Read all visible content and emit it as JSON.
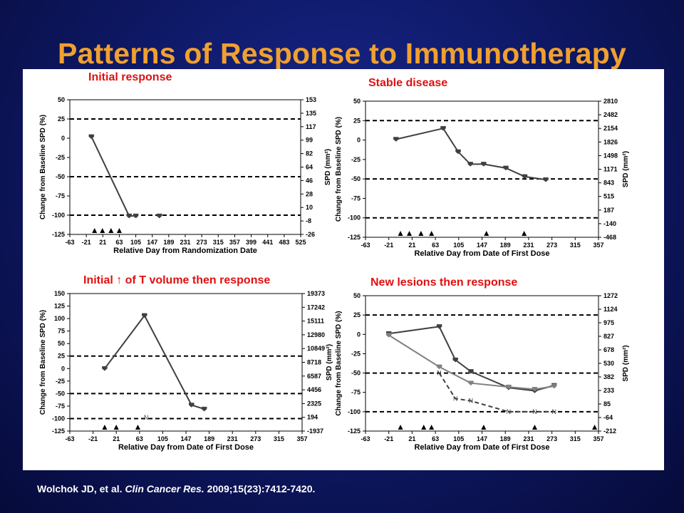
{
  "slide": {
    "title": "Patterns of Response to Immunotherapy",
    "citation_authors": "Wolchok JD, et al.",
    "citation_journal": "Clin Cancer Res.",
    "citation_rest": "2009;15(23):7412-7420."
  },
  "colors": {
    "title": "#f0a030",
    "chart_title": "#e01010",
    "line": "#404040",
    "line_light": "#808080"
  },
  "chart_data": [
    {
      "type": "line",
      "title": "Initial response",
      "xlabel": "Relative Day from Randomization Date",
      "ylabel": "Change from Baseline SPD (%)",
      "y2label": "SPD (mm²)",
      "xticks": [
        -63,
        -21,
        21,
        63,
        105,
        147,
        189,
        231,
        273,
        315,
        357,
        399,
        441,
        483,
        525
      ],
      "yticks": [
        50,
        25,
        0,
        -25,
        -50,
        -75,
        -100,
        -125
      ],
      "y2ticks": [
        "153",
        "135",
        "117",
        "99",
        "82",
        "64",
        "46",
        "28",
        "10",
        "-8",
        "-26"
      ],
      "xlim": [
        -63,
        525
      ],
      "ylim": [
        -125,
        50
      ],
      "hlines": [
        25,
        -50,
        -100
      ],
      "series": [
        {
          "values": [
            [
              -8,
              2
            ],
            [
              88,
              -101
            ],
            [
              105,
              -101
            ]
          ],
          "style": "solid",
          "marker": "square"
        },
        {
          "values": [
            [
              165,
              -101
            ]
          ],
          "style": "none",
          "marker": "square"
        }
      ],
      "triangles": [
        0,
        20,
        42,
        63
      ]
    },
    {
      "type": "line",
      "title": "Stable disease",
      "xlabel": "Relative Day from Date of First Dose",
      "ylabel": "Change from Baseline SPD (%)",
      "y2label": "SPD (mm²)",
      "xticks": [
        -63,
        -21,
        21,
        63,
        105,
        147,
        189,
        231,
        273,
        315,
        357
      ],
      "yticks": [
        50,
        25,
        0,
        -25,
        -50,
        -75,
        -100,
        -125
      ],
      "y2ticks": [
        "2810",
        "2482",
        "2154",
        "1826",
        "1498",
        "1171",
        "843",
        "515",
        "187",
        "-140",
        "-468"
      ],
      "xlim": [
        -63,
        357
      ],
      "ylim": [
        -125,
        50
      ],
      "hlines": [
        25,
        -50,
        -100
      ],
      "series": [
        {
          "values": [
            [
              -8,
              1
            ],
            [
              77,
              15
            ],
            [
              104,
              -15
            ],
            [
              126,
              -31
            ],
            [
              150,
              -31
            ],
            [
              190,
              -36
            ],
            [
              224,
              -47
            ],
            [
              262,
              -51
            ]
          ],
          "style": "solid",
          "marker": "square"
        }
      ],
      "triangles": [
        0,
        16,
        37,
        56,
        155,
        223
      ]
    },
    {
      "type": "line",
      "title": "Initial ↑ of T volume then response",
      "xlabel": "Relative Day from Date of First Dose",
      "ylabel": "Change from Baseline SPD (%)",
      "y2label": "SPD (mm²)",
      "xticks": [
        -63,
        -21,
        21,
        63,
        105,
        147,
        189,
        231,
        273,
        315,
        357
      ],
      "yticks": [
        150,
        125,
        100,
        75,
        50,
        25,
        0,
        -25,
        -50,
        -75,
        -100,
        -125
      ],
      "y2ticks": [
        "19373",
        "17242",
        "15111",
        "12980",
        "10849",
        "8718",
        "6587",
        "4456",
        "2325",
        "194",
        "-1937"
      ],
      "xlim": [
        -63,
        357
      ],
      "ylim": [
        -125,
        150
      ],
      "hlines": [
        25,
        -50,
        -100
      ],
      "series": [
        {
          "values": [
            [
              0,
              0
            ],
            [
              72,
              106
            ],
            [
              157,
              -73
            ],
            [
              180,
              -81
            ]
          ],
          "style": "solid",
          "marker": "square"
        }
      ],
      "nmarkers": [
        [
          75,
          -98
        ]
      ],
      "triangles": [
        0,
        21,
        60
      ]
    },
    {
      "type": "line",
      "title": "New lesions then response",
      "xlabel": "Relative Day from Date of First Dose",
      "ylabel": "Change from Baseline SPD (%)",
      "y2label": "SPD (mm²)",
      "xticks": [
        -63,
        -21,
        21,
        63,
        105,
        147,
        189,
        231,
        273,
        315,
        357
      ],
      "yticks": [
        50,
        25,
        0,
        -25,
        -50,
        -75,
        -100,
        -125
      ],
      "y2ticks": [
        "1272",
        "1124",
        "975",
        "827",
        "678",
        "530",
        "382",
        "233",
        "85",
        "-64",
        "-212"
      ],
      "xlim": [
        -63,
        357
      ],
      "ylim": [
        -125,
        50
      ],
      "hlines": [
        25,
        -50,
        -100
      ],
      "series": [
        {
          "values": [
            [
              -21,
              1
            ],
            [
              70,
              10
            ],
            [
              99,
              -33
            ],
            [
              127,
              -48
            ],
            [
              195,
              -69
            ],
            [
              242,
              -73
            ],
            [
              277,
              -66
            ]
          ],
          "style": "solid",
          "marker": "square"
        },
        {
          "values": [
            [
              -21,
              -1
            ],
            [
              70,
              -42
            ],
            [
              127,
              -63
            ],
            [
              195,
              -68
            ],
            [
              242,
              -71
            ],
            [
              277,
              -67
            ]
          ],
          "style": "solid-light",
          "marker": "square"
        },
        {
          "values": [
            [
              70,
              -50
            ],
            [
              99,
              -83
            ],
            [
              127,
              -86
            ],
            [
              195,
              -100
            ],
            [
              242,
              -100
            ],
            [
              277,
              -100
            ]
          ],
          "style": "dashed",
          "marker": "N"
        }
      ],
      "triangles": [
        0,
        42,
        56,
        150,
        242,
        350
      ]
    }
  ]
}
